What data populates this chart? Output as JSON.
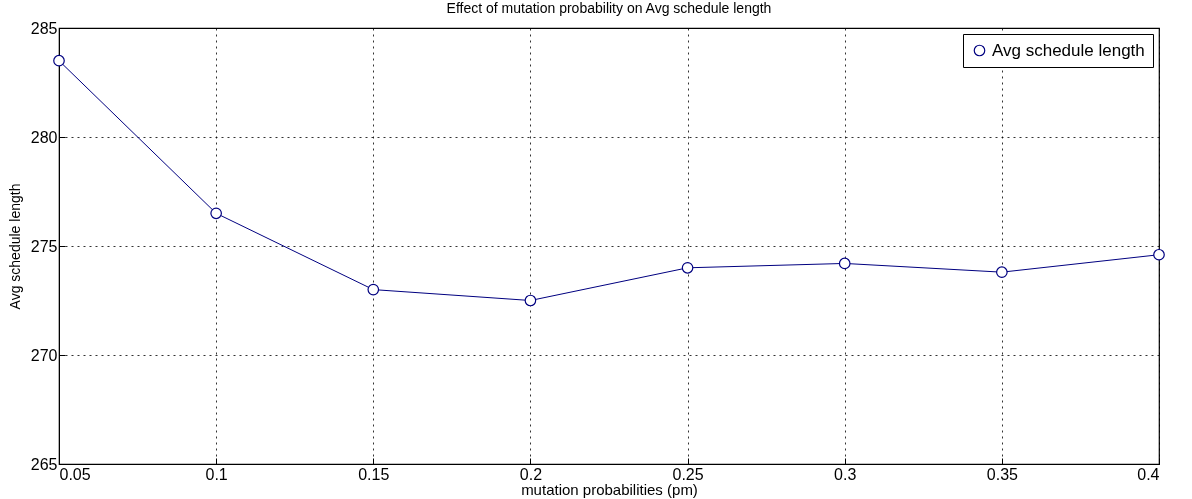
{
  "chart_data": {
    "type": "line",
    "title": "Effect of mutation probability on Avg schedule length",
    "xlabel": "mutation probabilities (pm)",
    "ylabel": "Avg schedule length",
    "x": [
      0.05,
      0.1,
      0.15,
      0.2,
      0.25,
      0.3,
      0.35,
      0.4
    ],
    "series": [
      {
        "name": "Avg schedule length",
        "color": "#000080",
        "values": [
          283.5,
          276.5,
          273.0,
          272.5,
          274.0,
          274.2,
          273.8,
          274.6
        ]
      }
    ],
    "xlim": [
      0.05,
      0.4
    ],
    "xticks": [
      0.05,
      0.1,
      0.15,
      0.2,
      0.25,
      0.3,
      0.35,
      0.4
    ],
    "ylim": [
      265,
      285
    ],
    "yticks": [
      265,
      270,
      275,
      280,
      285
    ],
    "grid": true,
    "legend": "top right",
    "marker": "circle",
    "line_style": "solid"
  }
}
